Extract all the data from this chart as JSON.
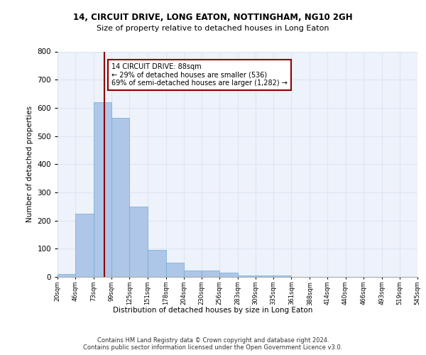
{
  "title1": "14, CIRCUIT DRIVE, LONG EATON, NOTTINGHAM, NG10 2GH",
  "title2": "Size of property relative to detached houses in Long Eaton",
  "xlabel": "Distribution of detached houses by size in Long Eaton",
  "ylabel": "Number of detached properties",
  "footer1": "Contains HM Land Registry data © Crown copyright and database right 2024.",
  "footer2": "Contains public sector information licensed under the Open Government Licence v3.0.",
  "annotation_title": "14 CIRCUIT DRIVE: 88sqm",
  "annotation_line1": "← 29% of detached houses are smaller (536)",
  "annotation_line2": "69% of semi-detached houses are larger (1,282) →",
  "property_size": 88,
  "bin_edges": [
    20,
    46,
    73,
    99,
    125,
    151,
    178,
    204,
    230,
    256,
    283,
    309,
    335,
    361,
    388,
    414,
    440,
    466,
    493,
    519,
    545
  ],
  "bin_counts": [
    10,
    225,
    620,
    565,
    250,
    95,
    50,
    22,
    22,
    15,
    5,
    5,
    5,
    0,
    0,
    0,
    0,
    0,
    0,
    0
  ],
  "bar_color": "#aec6e8",
  "bar_edge_color": "#6baed6",
  "vline_color": "#8b0000",
  "vline_x": 88,
  "grid_color": "#dce6f5",
  "bg_color": "#eef2fa",
  "annotation_box_color": "#8b0000",
  "ylim": [
    0,
    800
  ],
  "tick_labels": [
    "20sqm",
    "46sqm",
    "73sqm",
    "99sqm",
    "125sqm",
    "151sqm",
    "178sqm",
    "204sqm",
    "230sqm",
    "256sqm",
    "283sqm",
    "309sqm",
    "335sqm",
    "361sqm",
    "388sqm",
    "414sqm",
    "440sqm",
    "466sqm",
    "493sqm",
    "519sqm",
    "545sqm"
  ]
}
